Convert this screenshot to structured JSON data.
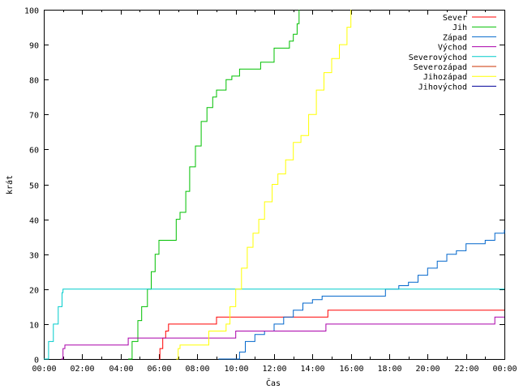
{
  "chart_data": {
    "type": "line",
    "xlabel": "Čas",
    "ylabel": "krát",
    "ylim": [
      0,
      100
    ],
    "xlim": [
      0,
      24
    ],
    "x_unit": "hours",
    "grid": false,
    "legend_position": "top-right",
    "y_ticks": [
      "0",
      "10",
      "20",
      "30",
      "40",
      "50",
      "60",
      "70",
      "80",
      "90",
      "100"
    ],
    "x_ticks": [
      "00:00",
      "02:00",
      "04:00",
      "06:00",
      "08:00",
      "10:00",
      "12:00",
      "14:00",
      "16:00",
      "18:00",
      "20:00",
      "22:00",
      "00:00"
    ],
    "series": [
      {
        "name": "Sever",
        "color": "#ff0000",
        "x": [
          6.0,
          6.05,
          6.2,
          6.35,
          6.5,
          8.95,
          9.0,
          12.1,
          12.15,
          14.75,
          14.8,
          24.0
        ],
        "values": [
          0,
          3,
          6,
          8,
          10,
          10,
          12,
          12,
          12,
          12,
          14,
          14
        ]
      },
      {
        "name": "Jih",
        "color": "#00c000",
        "x": [
          4.4,
          4.6,
          4.9,
          5.1,
          5.4,
          5.6,
          5.8,
          6.0,
          6.1,
          6.6,
          6.9,
          7.1,
          7.4,
          7.6,
          7.9,
          8.2,
          8.5,
          8.8,
          9.0,
          9.2,
          9.5,
          9.8,
          10.0,
          10.2,
          10.5,
          11.0,
          11.3,
          11.7,
          12.0,
          12.6,
          12.8,
          13.0,
          13.2,
          13.3
        ],
        "values": [
          0,
          5,
          11,
          15,
          20,
          25,
          30,
          34,
          34,
          34,
          40,
          42,
          48,
          55,
          61,
          68,
          72,
          75,
          77,
          77,
          80,
          81,
          81,
          83,
          83,
          83,
          85,
          85,
          89,
          89,
          91,
          93,
          96,
          100
        ]
      },
      {
        "name": "Západ",
        "color": "#0066cc",
        "x": [
          9.1,
          10.2,
          10.5,
          11.0,
          11.5,
          12.0,
          12.5,
          13.0,
          13.5,
          14.0,
          14.5,
          15.0,
          17.8,
          18.5,
          19.0,
          19.5,
          20.0,
          20.5,
          21.0,
          21.5,
          22.0,
          23.0,
          23.5,
          24.0
        ],
        "values": [
          0,
          2,
          5,
          7,
          8,
          10,
          12,
          14,
          16,
          17,
          18,
          18,
          20,
          21,
          22,
          24,
          26,
          28,
          30,
          31,
          33,
          34,
          36,
          37
        ]
      },
      {
        "name": "Východ",
        "color": "#aa00aa",
        "x": [
          0.9,
          1.0,
          1.1,
          4.3,
          4.4,
          9.9,
          10.0,
          14.6,
          14.7,
          23.45,
          23.5,
          24.0
        ],
        "values": [
          0,
          3,
          4,
          4,
          6,
          6,
          8,
          8,
          10,
          10,
          12,
          12
        ]
      },
      {
        "name": "Severovýchod",
        "color": "#00cccc",
        "x": [
          0.0,
          0.25,
          0.5,
          0.75,
          0.95,
          1.0,
          24.0
        ],
        "values": [
          0,
          5,
          10,
          15,
          19,
          20,
          20
        ]
      },
      {
        "name": "Severozápad",
        "color": "#cc3300",
        "x": [],
        "values": []
      },
      {
        "name": "Jihozápad",
        "color": "#ffff00",
        "x": [
          6.9,
          7.0,
          7.1,
          8.5,
          8.6,
          9.5,
          9.7,
          10.0,
          10.3,
          10.6,
          10.9,
          11.2,
          11.5,
          11.9,
          12.2,
          12.6,
          13.0,
          13.4,
          13.8,
          14.2,
          14.6,
          15.0,
          15.4,
          15.8,
          16.0
        ],
        "values": [
          0,
          3,
          4,
          4,
          8,
          10,
          15,
          20,
          26,
          32,
          36,
          40,
          45,
          50,
          53,
          57,
          62,
          64,
          70,
          77,
          82,
          86,
          90,
          95,
          100
        ]
      },
      {
        "name": "Jihovýchod",
        "color": "#000099",
        "x": [],
        "values": []
      }
    ]
  }
}
